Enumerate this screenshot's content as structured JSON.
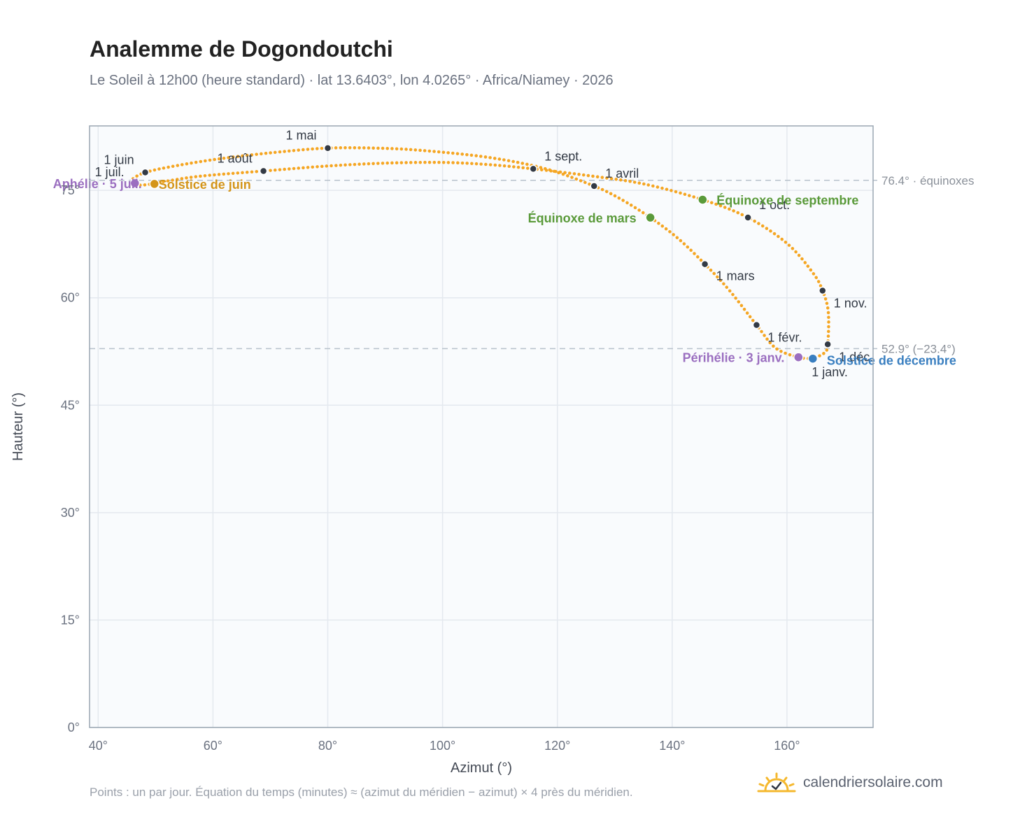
{
  "header": {
    "title": "Analemme de Dogondoutchi",
    "subtitle": "Le Soleil à 12h00 (heure standard) · lat 13.6403°, lon 4.0265° · Africa/Niamey · 2026"
  },
  "footer": {
    "note": "Points : un par jour. Équation du temps (minutes) ≈ (azimut du méridien − azimut) × 4 près du méridien.",
    "brand": "calendriersolaire.com",
    "brand_icon": "sun-check-icon"
  },
  "chart_data": {
    "type": "scatter",
    "xlabel": "Azimut (°)",
    "ylabel": "Hauteur (°)",
    "xlim": [
      38.5,
      175
    ],
    "ylim": [
      0,
      84
    ],
    "x_ticks": [
      {
        "value": 40,
        "label": "40°"
      },
      {
        "value": 60,
        "label": "60°"
      },
      {
        "value": 80,
        "label": "80°"
      },
      {
        "value": 100,
        "label": "100°"
      },
      {
        "value": 120,
        "label": "120°"
      },
      {
        "value": 140,
        "label": "140°"
      },
      {
        "value": 160,
        "label": "160°"
      }
    ],
    "y_ticks": [
      {
        "value": 0,
        "label": "0°"
      },
      {
        "value": 15,
        "label": "15°"
      },
      {
        "value": 30,
        "label": "30°"
      },
      {
        "value": 45,
        "label": "45°"
      },
      {
        "value": 60,
        "label": "60°"
      },
      {
        "value": 75,
        "label": "75°"
      }
    ],
    "grid": true,
    "colors": {
      "curve": "#f5a623",
      "month_marker": "#333a45",
      "equinox": "#5a9a3a",
      "solstice_june": "#d4951a",
      "solstice_december": "#3a7fc0",
      "perihelion_aphelion": "#9b6fc0",
      "reference_line": "#b8c2cc",
      "plot_background": "#f9fbfd"
    },
    "reference_lines": [
      {
        "y": 76.4,
        "label": "76.4° · équinoxes"
      },
      {
        "y": 52.9,
        "label": "52.9° (−23.4°)"
      }
    ],
    "curve_points": [
      {
        "x": 164.5,
        "y": 51.5
      },
      {
        "x": 162.0,
        "y": 51.7
      },
      {
        "x": 158.0,
        "y": 53.0
      },
      {
        "x": 154.7,
        "y": 56.2
      },
      {
        "x": 150.0,
        "y": 61.0
      },
      {
        "x": 145.7,
        "y": 64.7
      },
      {
        "x": 141.0,
        "y": 68.3
      },
      {
        "x": 136.2,
        "y": 71.2
      },
      {
        "x": 131.0,
        "y": 73.8
      },
      {
        "x": 126.4,
        "y": 75.6
      },
      {
        "x": 118.0,
        "y": 78.0
      },
      {
        "x": 108.0,
        "y": 79.6
      },
      {
        "x": 96.0,
        "y": 80.6
      },
      {
        "x": 88.0,
        "y": 80.9
      },
      {
        "x": 80.0,
        "y": 80.9
      },
      {
        "x": 72.0,
        "y": 80.4
      },
      {
        "x": 62.0,
        "y": 79.5
      },
      {
        "x": 54.0,
        "y": 78.5
      },
      {
        "x": 48.2,
        "y": 77.5
      },
      {
        "x": 45.8,
        "y": 76.4
      },
      {
        "x": 46.5,
        "y": 75.8
      },
      {
        "x": 48.5,
        "y": 75.8
      },
      {
        "x": 52.0,
        "y": 76.3
      },
      {
        "x": 58.0,
        "y": 77.0
      },
      {
        "x": 68.8,
        "y": 77.7
      },
      {
        "x": 80.0,
        "y": 78.4
      },
      {
        "x": 90.0,
        "y": 78.8
      },
      {
        "x": 100.0,
        "y": 78.9
      },
      {
        "x": 108.0,
        "y": 78.6
      },
      {
        "x": 115.8,
        "y": 78.0
      },
      {
        "x": 125.0,
        "y": 77.1
      },
      {
        "x": 135.0,
        "y": 75.9
      },
      {
        "x": 145.3,
        "y": 73.7
      },
      {
        "x": 153.2,
        "y": 71.2
      },
      {
        "x": 160.0,
        "y": 67.6
      },
      {
        "x": 164.5,
        "y": 63.5
      },
      {
        "x": 166.2,
        "y": 61.0
      },
      {
        "x": 167.2,
        "y": 58.0
      },
      {
        "x": 167.1,
        "y": 53.5
      },
      {
        "x": 166.5,
        "y": 52.3
      },
      {
        "x": 164.5,
        "y": 51.5
      }
    ],
    "month_markers": [
      {
        "label": "1 janv.",
        "x": 164.3,
        "y": 51.4,
        "anchor": "start",
        "dx": 0,
        "dy": 24
      },
      {
        "label": "1 févr.",
        "x": 154.7,
        "y": 56.2,
        "anchor": "start",
        "dx": 16,
        "dy": 24
      },
      {
        "label": "1 mars",
        "x": 145.7,
        "y": 64.7,
        "anchor": "start",
        "dx": 16,
        "dy": 23
      },
      {
        "label": "1 avril",
        "x": 126.4,
        "y": 75.6,
        "anchor": "start",
        "dx": 16,
        "dy": -12
      },
      {
        "label": "1 mai",
        "x": 80.0,
        "y": 80.9,
        "anchor": "end",
        "dx": -16,
        "dy": -12
      },
      {
        "label": "1 juin",
        "x": 48.2,
        "y": 77.5,
        "anchor": "end",
        "dx": -16,
        "dy": -12
      },
      {
        "label": "1 juil.",
        "x": 46.5,
        "y": 75.8,
        "anchor": "end",
        "dx": -16,
        "dy": -12
      },
      {
        "label": "1 août",
        "x": 68.8,
        "y": 77.7,
        "anchor": "end",
        "dx": -16,
        "dy": -12
      },
      {
        "label": "1 sept.",
        "x": 115.8,
        "y": 78.0,
        "anchor": "start",
        "dx": 16,
        "dy": -12
      },
      {
        "label": "1 oct.",
        "x": 153.2,
        "y": 71.2,
        "anchor": "start",
        "dx": 16,
        "dy": -12
      },
      {
        "label": "1 nov.",
        "x": 166.2,
        "y": 61.0,
        "anchor": "start",
        "dx": 16,
        "dy": 24
      },
      {
        "label": "1 déc.",
        "x": 167.1,
        "y": 53.5,
        "anchor": "start",
        "dx": 16,
        "dy": 24
      }
    ],
    "events": [
      {
        "label": "Équinoxe de mars",
        "x": 136.2,
        "y": 71.2,
        "color": "#5a9a3a",
        "anchor": "end",
        "dx": -20,
        "dy": 7
      },
      {
        "label": "Équinoxe de septembre",
        "x": 145.3,
        "y": 73.7,
        "color": "#5a9a3a",
        "anchor": "start",
        "dx": 20,
        "dy": 7
      },
      {
        "label": "Solstice de juin",
        "x": 49.8,
        "y": 75.9,
        "color": "#d4951a",
        "anchor": "start",
        "dx": 6,
        "dy": 7
      },
      {
        "label": "Solstice de décembre",
        "x": 164.5,
        "y": 51.5,
        "color": "#3a7fc0",
        "anchor": "start",
        "dx": 20,
        "dy": 9
      },
      {
        "label": "Périhélie · 3 janv.",
        "x": 162.0,
        "y": 51.7,
        "color": "#9b6fc0",
        "anchor": "end",
        "dx": -20,
        "dy": 7
      },
      {
        "label": "Aphélie · 5 juil.",
        "x": 46.4,
        "y": 76.0,
        "color": "#9b6fc0",
        "anchor": "end",
        "dx": 10,
        "dy": 7
      }
    ]
  }
}
